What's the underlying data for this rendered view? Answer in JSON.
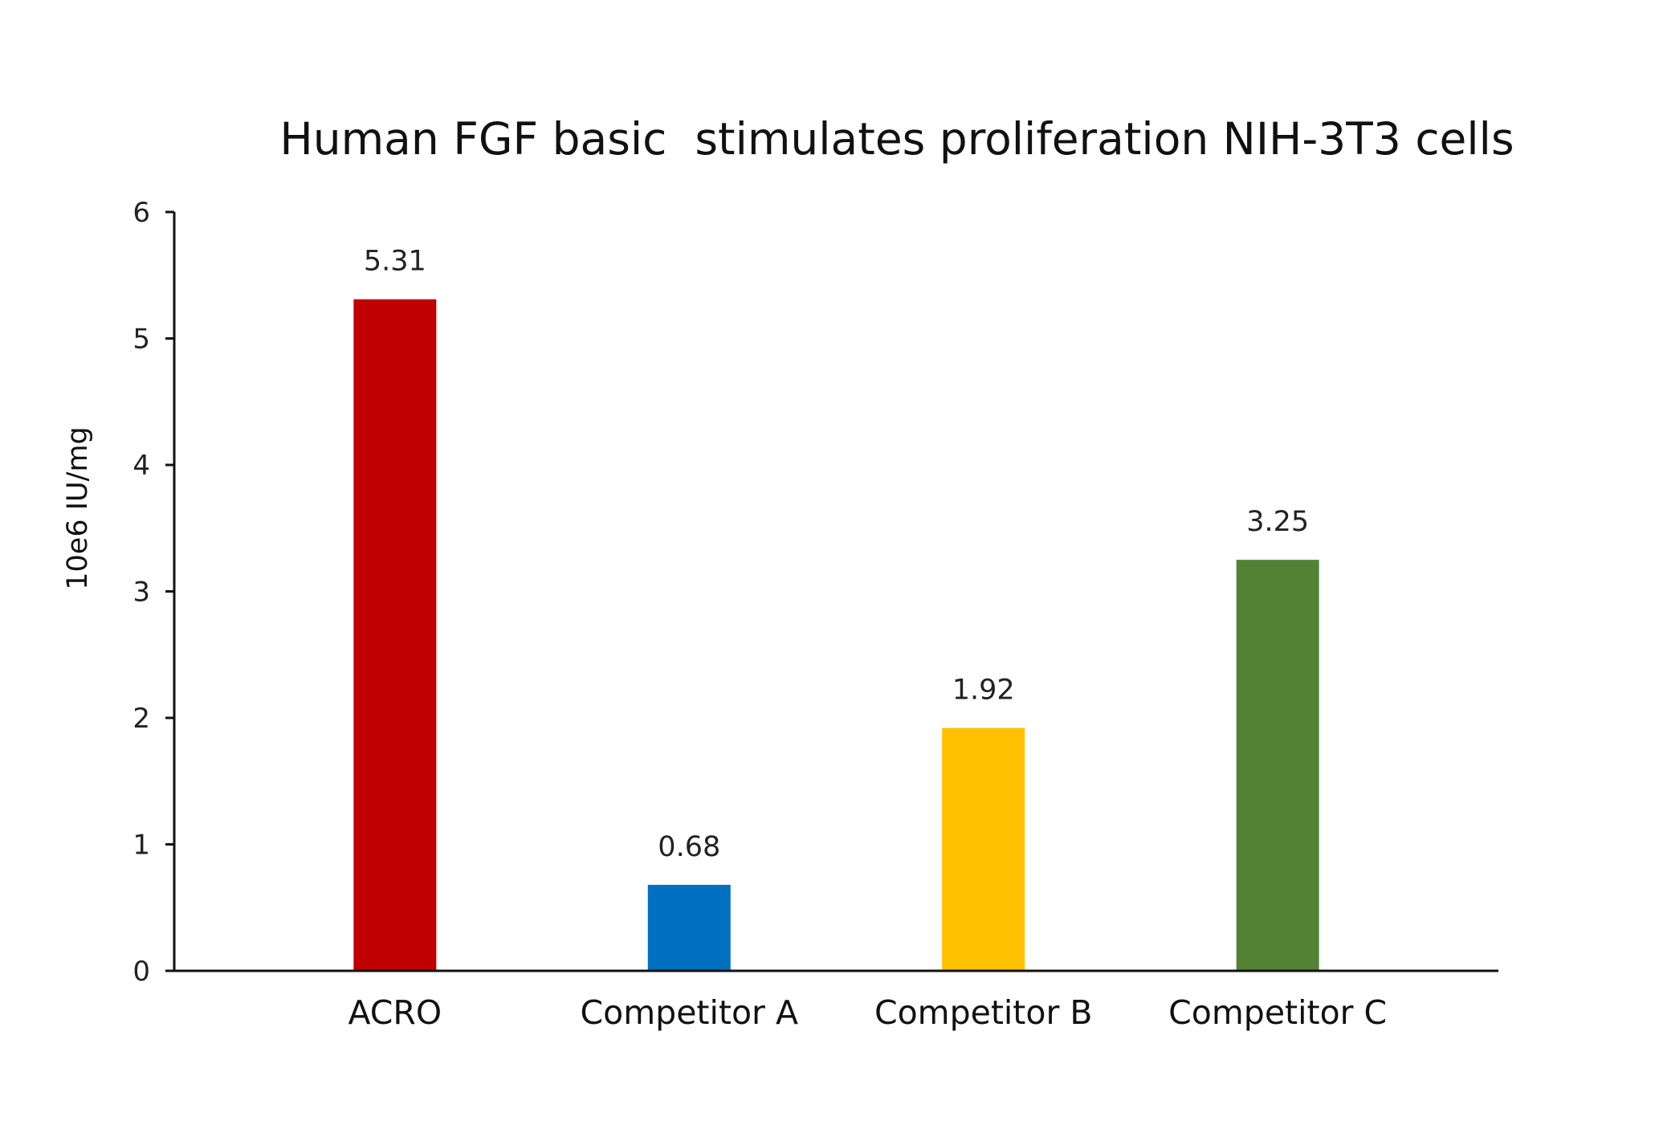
{
  "chart_data": {
    "type": "bar",
    "title": "Human FGF basic  stimulates proliferation NIH-3T3 cells",
    "xlabel": "",
    "ylabel": "10e6 IU/mg",
    "ylim": [
      0,
      6
    ],
    "yticks": [
      "0",
      "1",
      "2",
      "3",
      "4",
      "5",
      "6"
    ],
    "grid": false,
    "legend": "none",
    "categories": [
      "ACRO",
      "Competitor A",
      "Competitor B",
      "Competitor C"
    ],
    "values": [
      5.31,
      0.68,
      1.92,
      3.25
    ],
    "value_labels": [
      "5.31",
      "0.68",
      "1.92",
      "3.25"
    ],
    "colors": [
      "#C00000",
      "#0070C0",
      "#FFC000",
      "#548235"
    ]
  }
}
